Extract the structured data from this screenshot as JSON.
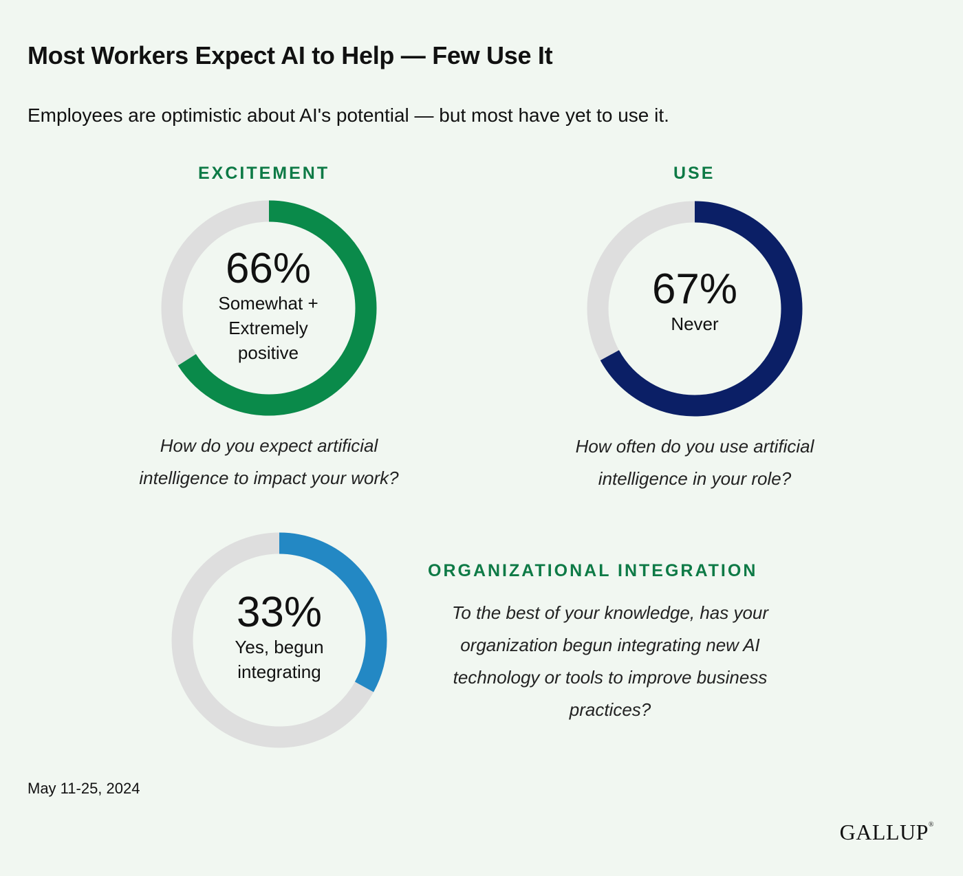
{
  "title": "Most Workers Expect AI to Help — Few Use It",
  "subtitle": "Employees are optimistic about AI's potential — but most have yet to use it.",
  "colors": {
    "background": "#f1f7f1",
    "track": "#dedede",
    "label_green": "#0e7a46"
  },
  "chart_data": [
    {
      "type": "pie",
      "variant": "donut",
      "section_label": "EXCITEMENT",
      "value": 66,
      "value_label": "66%",
      "category_lines": [
        "Somewhat +",
        "Extremely",
        "positive"
      ],
      "question": [
        "How do you expect artificial",
        "intelligence to impact your work?"
      ],
      "color": "#0a8a4a"
    },
    {
      "type": "pie",
      "variant": "donut",
      "section_label": "USE",
      "value": 67,
      "value_label": "67%",
      "category_lines": [
        "Never"
      ],
      "question": [
        "How often do you use artificial",
        "intelligence in your role?"
      ],
      "color": "#0b1f66"
    },
    {
      "type": "pie",
      "variant": "donut",
      "section_label": "ORGANIZATIONAL INTEGRATION",
      "value": 33,
      "value_label": "33%",
      "category_lines": [
        "Yes, begun",
        "integrating"
      ],
      "question": [
        "To the best of your knowledge, has your",
        "organization begun integrating new AI",
        "technology or tools to improve business",
        "practices?"
      ],
      "color": "#2388c4"
    }
  ],
  "footer": {
    "date": "May 11-25, 2024",
    "logo": "GALLUP"
  }
}
